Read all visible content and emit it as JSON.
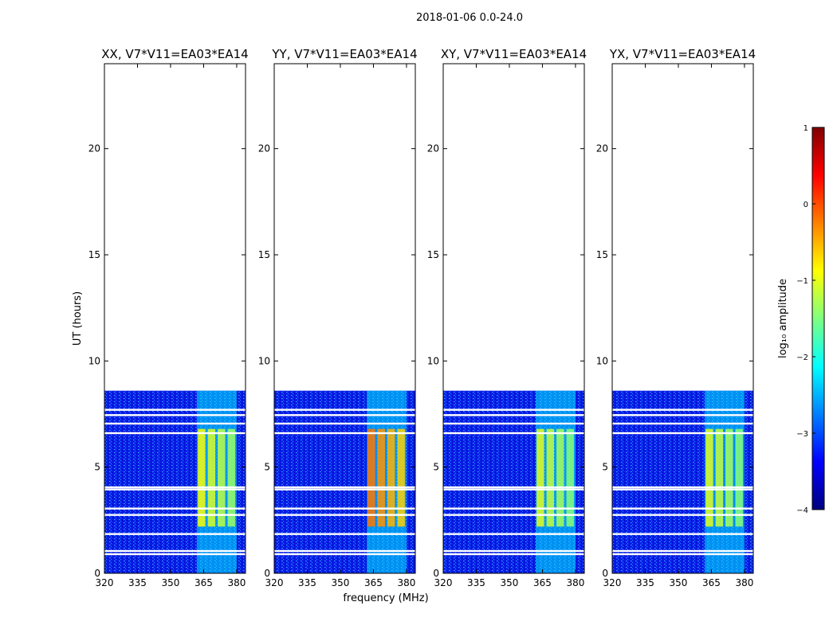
{
  "chart_data": {
    "type": "heatmap",
    "suptitle": "2018-01-06 0.0-24.0",
    "xlabel": "frequency (MHz)",
    "ylabel": "UT (hours)",
    "xlim": [
      320,
      384
    ],
    "ylim": [
      0,
      24
    ],
    "xticks": [
      "320",
      "335",
      "350",
      "365",
      "380"
    ],
    "yticks": [
      "0",
      "5",
      "10",
      "15",
      "20"
    ],
    "data_extent_hours": [
      0,
      8.6
    ],
    "band_frequency_range_mhz": [
      362,
      380
    ],
    "panels": [
      {
        "title": "XX, V7*V11=EA03*EA14",
        "peak_log_amplitude": -0.9,
        "band_hours": [
          2.2,
          6.8
        ]
      },
      {
        "title": "YY, V7*V11=EA03*EA14",
        "peak_log_amplitude": -0.2,
        "band_hours": [
          2.2,
          6.8
        ]
      },
      {
        "title": "XY, V7*V11=EA03*EA14",
        "peak_log_amplitude": -1.0,
        "band_hours": [
          2.2,
          6.8
        ]
      },
      {
        "title": "YX, V7*V11=EA03*EA14",
        "peak_log_amplitude": -1.0,
        "band_hours": [
          2.2,
          6.8
        ]
      }
    ],
    "flagged_gaps_hours": [
      0.9,
      1.05,
      1.85,
      2.75,
      3.05,
      3.95,
      4.05,
      6.6,
      7.05,
      7.45,
      7.7
    ],
    "colorbar": {
      "label": "log₁₀ amplitude",
      "range": [
        -4,
        1
      ],
      "ticks": [
        "1",
        "0",
        "−1",
        "−2",
        "−3",
        "−4"
      ],
      "colormap": "jet",
      "colors": [
        "#00007f",
        "#0000ff",
        "#007fff",
        "#00ffff",
        "#7fff7f",
        "#ffff00",
        "#ff7f00",
        "#ff0000",
        "#7f0000"
      ]
    }
  }
}
